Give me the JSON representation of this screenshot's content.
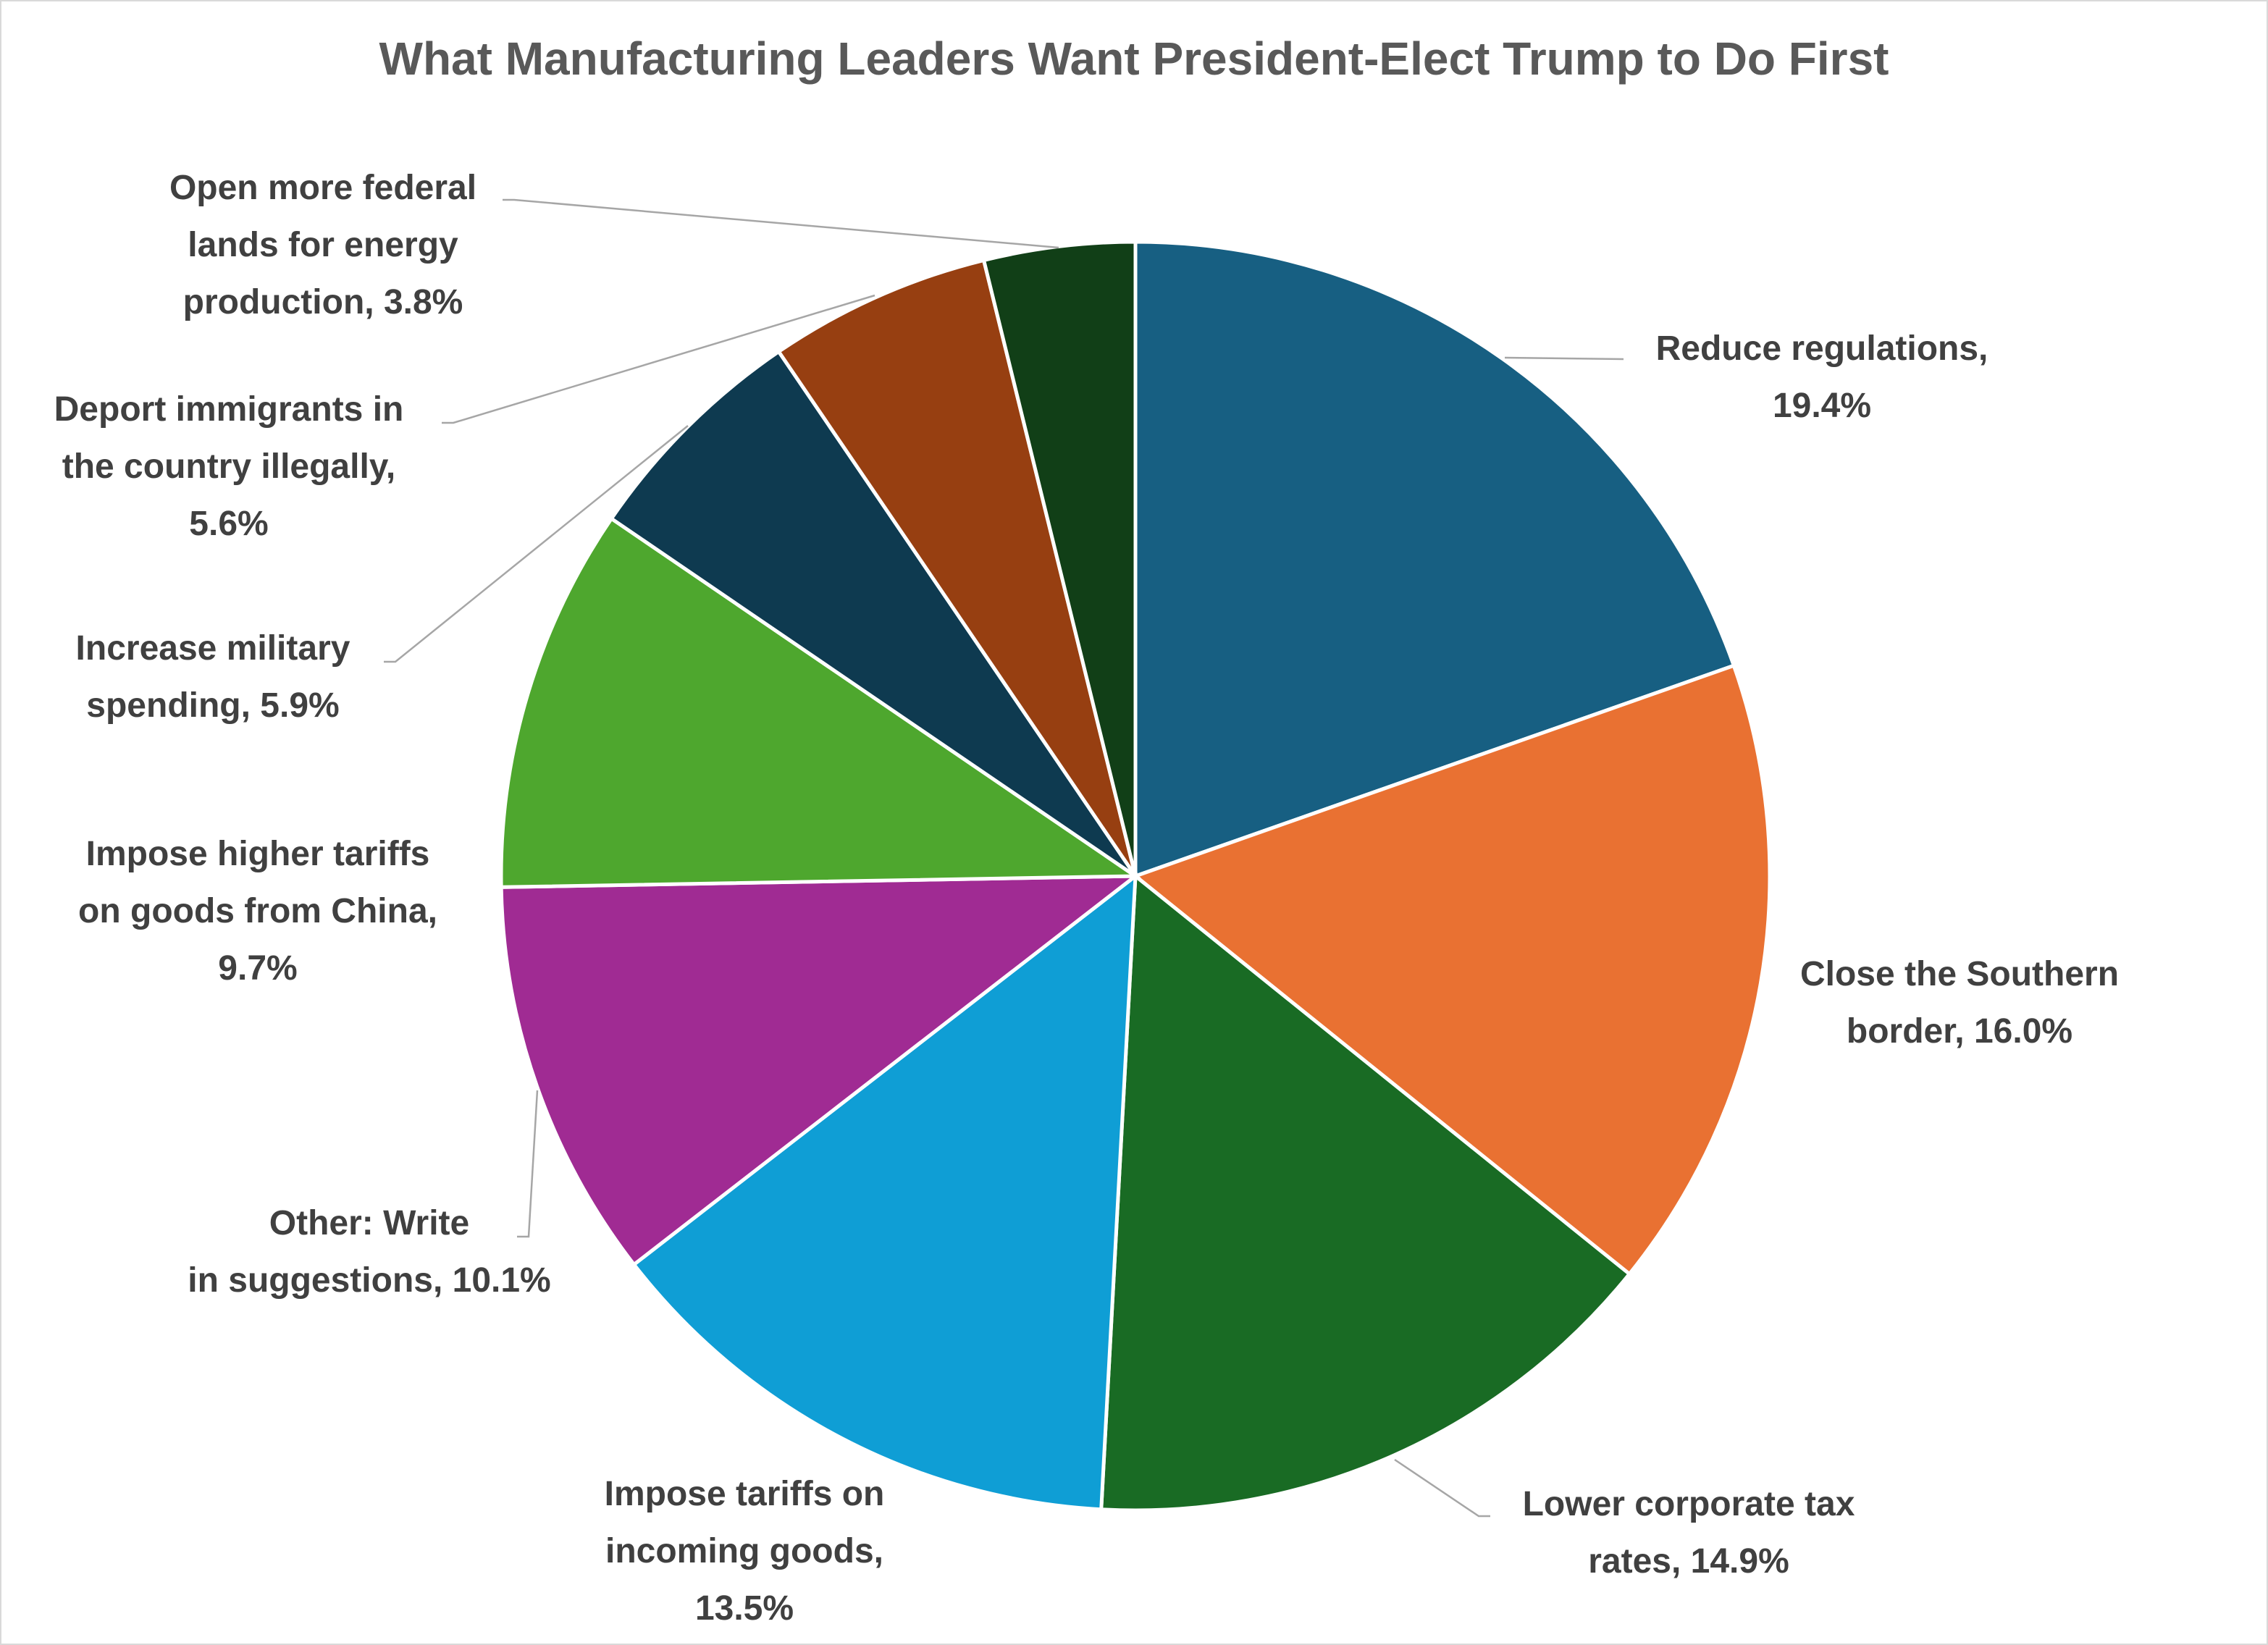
{
  "chart_data": {
    "type": "pie",
    "title": "What Manufacturing Leaders Want President-Elect Trump to Do First",
    "slices": [
      {
        "label": "Reduce regulations,",
        "pct_label": "19.4%",
        "value": 19.4,
        "color": "#175F82"
      },
      {
        "label": "Close the Southern border,",
        "pct_label": "16.0%",
        "value": 16.0,
        "color": "#E97132"
      },
      {
        "label": "Lower corporate tax rates,",
        "pct_label": "14.9%",
        "value": 14.9,
        "color": "#196B24"
      },
      {
        "label": "Impose tariffs on incoming goods,",
        "pct_label": "13.5%",
        "value": 13.5,
        "color": "#0F9ED5"
      },
      {
        "label": "Other: Write in suggestions,",
        "pct_label": "10.1%",
        "value": 10.1,
        "color": "#A02B93"
      },
      {
        "label": "Impose higher tariffs on goods from China,",
        "pct_label": "9.7%",
        "value": 9.7,
        "color": "#4EA72E"
      },
      {
        "label": "Increase military spending,",
        "pct_label": "5.9%",
        "value": 5.9,
        "color": "#0E3A50"
      },
      {
        "label": "Deport immigrants in the country illegally,",
        "pct_label": "5.6%",
        "value": 5.6,
        "color": "#973F11"
      },
      {
        "label": "Open more federal lands for energy production,",
        "pct_label": "3.8%",
        "value": 3.8,
        "color": "#113F17"
      }
    ]
  }
}
